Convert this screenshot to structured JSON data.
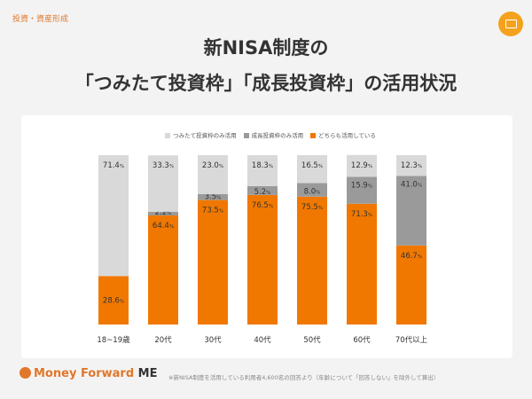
{
  "header": {
    "category": "投資・資産形成",
    "title_line1": "新NISA制度の",
    "title_line2": "「つみたて投資枠」「成長投資枠」の活用状況"
  },
  "icons": {
    "badge": "screen-icon"
  },
  "chart_data": {
    "type": "bar",
    "stacked": true,
    "orientation": "vertical",
    "categories": [
      "18~19歳",
      "20代",
      "30代",
      "40代",
      "50代",
      "60代",
      "70代以上"
    ],
    "series": [
      {
        "name": "どちらも活用している",
        "color": "#f07800",
        "values": [
          28.6,
          64.4,
          73.5,
          76.5,
          75.5,
          71.3,
          46.7
        ]
      },
      {
        "name": "成長投資枠のみ活用",
        "color": "#9a9a9a",
        "values": [
          null,
          2.2,
          3.5,
          5.2,
          8.0,
          15.9,
          41.0
        ]
      },
      {
        "name": "つみたて投資枠のみ活用",
        "color": "#d9d9d9",
        "values": [
          71.4,
          33.3,
          23.0,
          18.3,
          16.5,
          12.9,
          12.3
        ]
      }
    ],
    "legend_order": [
      "つみたて投資枠のみ活用",
      "成長投資枠のみ活用",
      "どちらも活用している"
    ],
    "legend_position": "top",
    "unit": "%",
    "ylim": [
      0,
      100
    ],
    "grid": false
  },
  "footer": {
    "brand": "Money Forward",
    "brand_suffix": "ME",
    "note": "※新NISA制度を活用している利用者4,600名の回答より（年齢について「回答しない」を除外して算出）"
  }
}
